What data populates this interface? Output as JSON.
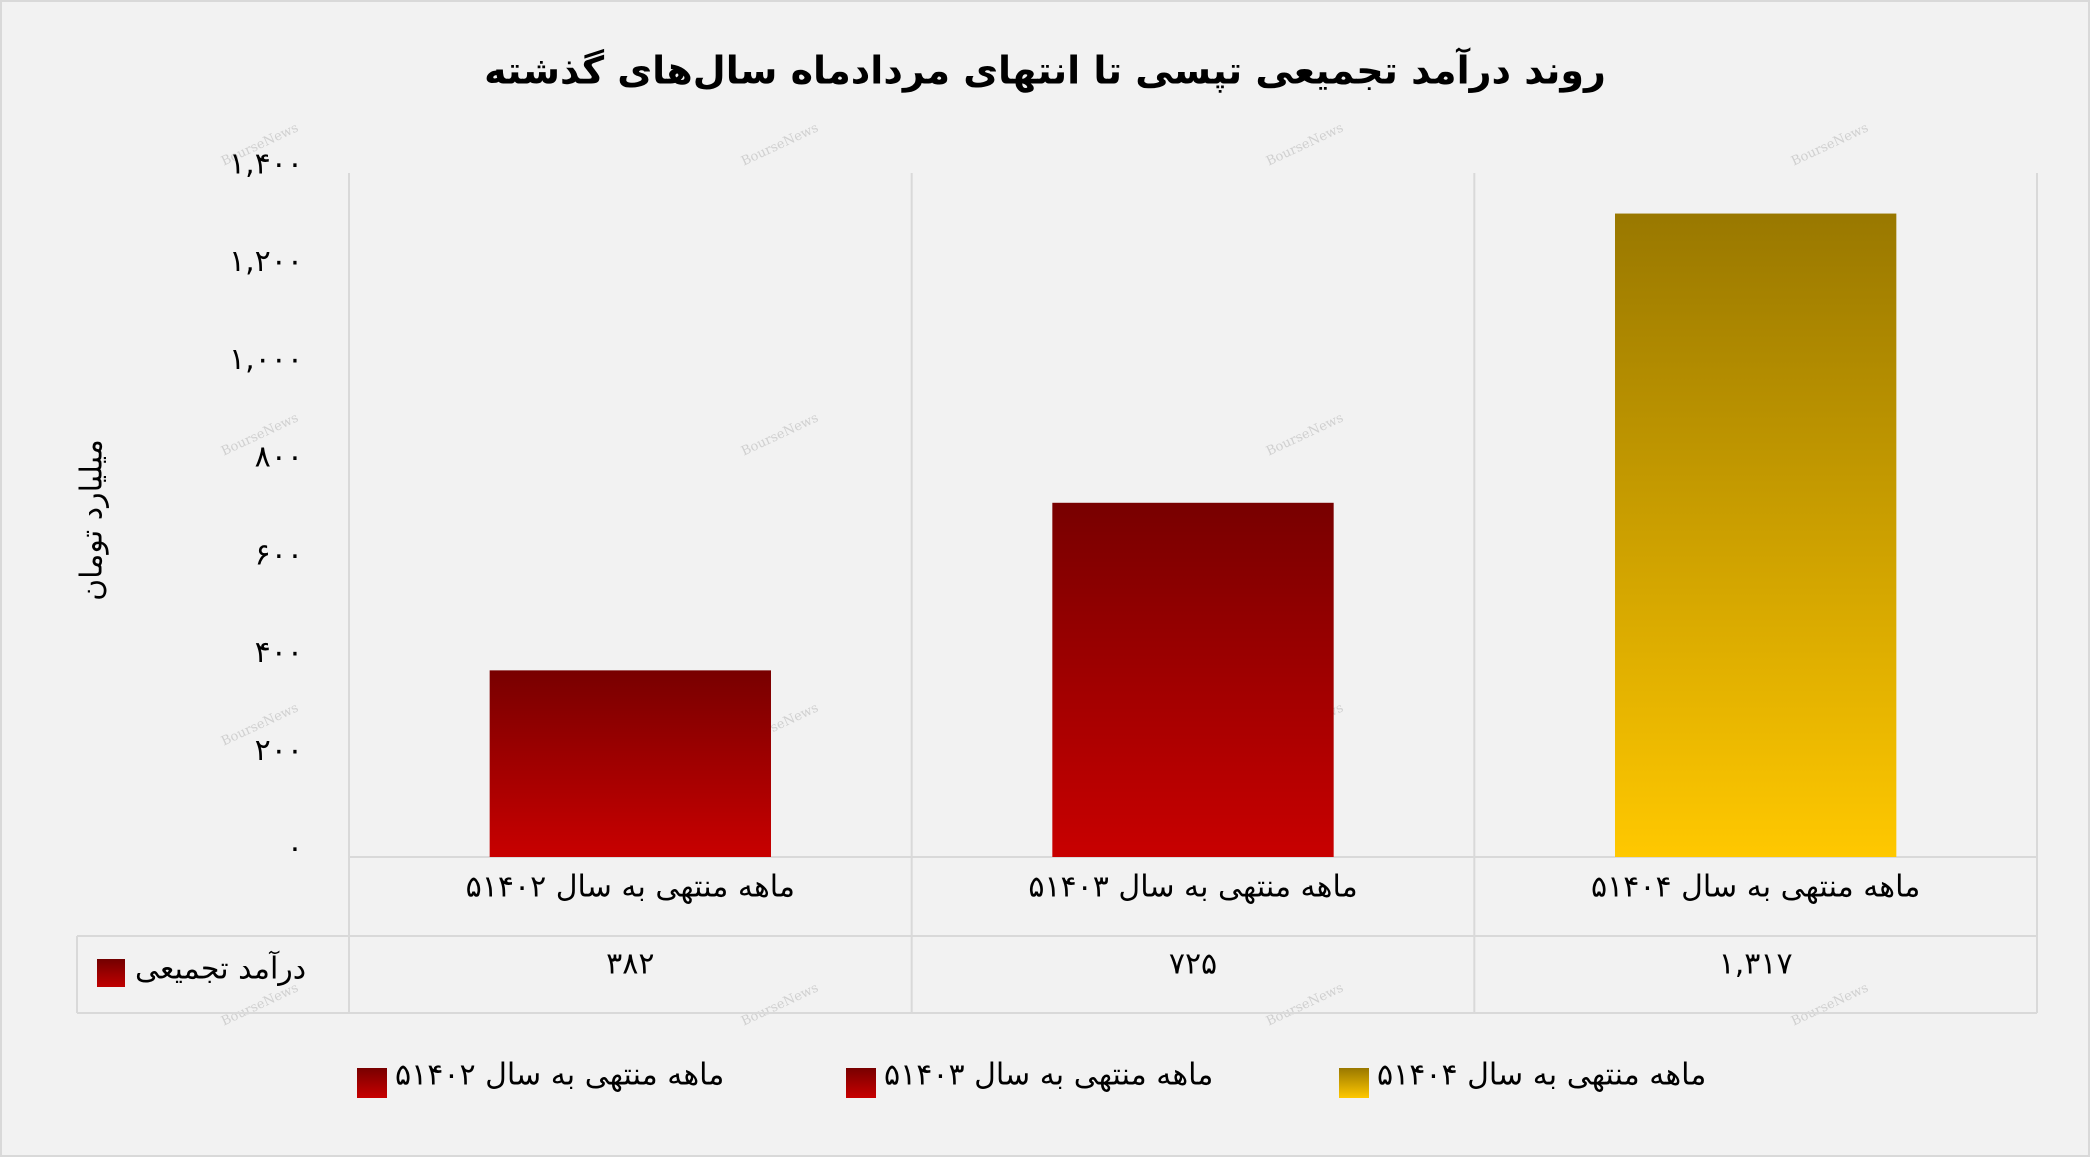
{
  "chart_data": {
    "type": "bar",
    "title": "روند درآمد تجمیعی تپسی تا انتهای مردادماه سال‌های گذشته",
    "y_label": "میلیارد تومان",
    "categories": [
      "۵ماهه منتهی به سال ۱۴۰۲",
      "۵ماهه منتهی به سال ۱۴۰۳",
      "۵ماهه منتهی به سال ۱۴۰۴"
    ],
    "series": [
      {
        "name": "درآمد تجمیعی",
        "color": "#c00000",
        "colors": [
          "#c80000",
          "#c80000",
          "#ffc800"
        ],
        "values": [
          382,
          725,
          1317
        ],
        "value_labels": [
          "۳۸۲",
          "۷۲۵",
          "۱,۳۱۷"
        ]
      }
    ],
    "ylim": [
      0,
      1400
    ],
    "yticks": [
      {
        "value": 0,
        "label": "۰"
      },
      {
        "value": 200,
        "label": "۲۰۰"
      },
      {
        "value": 400,
        "label": "۴۰۰"
      },
      {
        "value": 600,
        "label": "۶۰۰"
      },
      {
        "value": 800,
        "label": "۸۰۰"
      },
      {
        "value": 1000,
        "label": "۱,۰۰۰"
      },
      {
        "value": 1200,
        "label": "۱,۲۰۰"
      },
      {
        "value": 1400,
        "label": "۱,۴۰۰"
      }
    ],
    "grid": false,
    "watermark": "BourseNews",
    "legend": "bottom"
  }
}
